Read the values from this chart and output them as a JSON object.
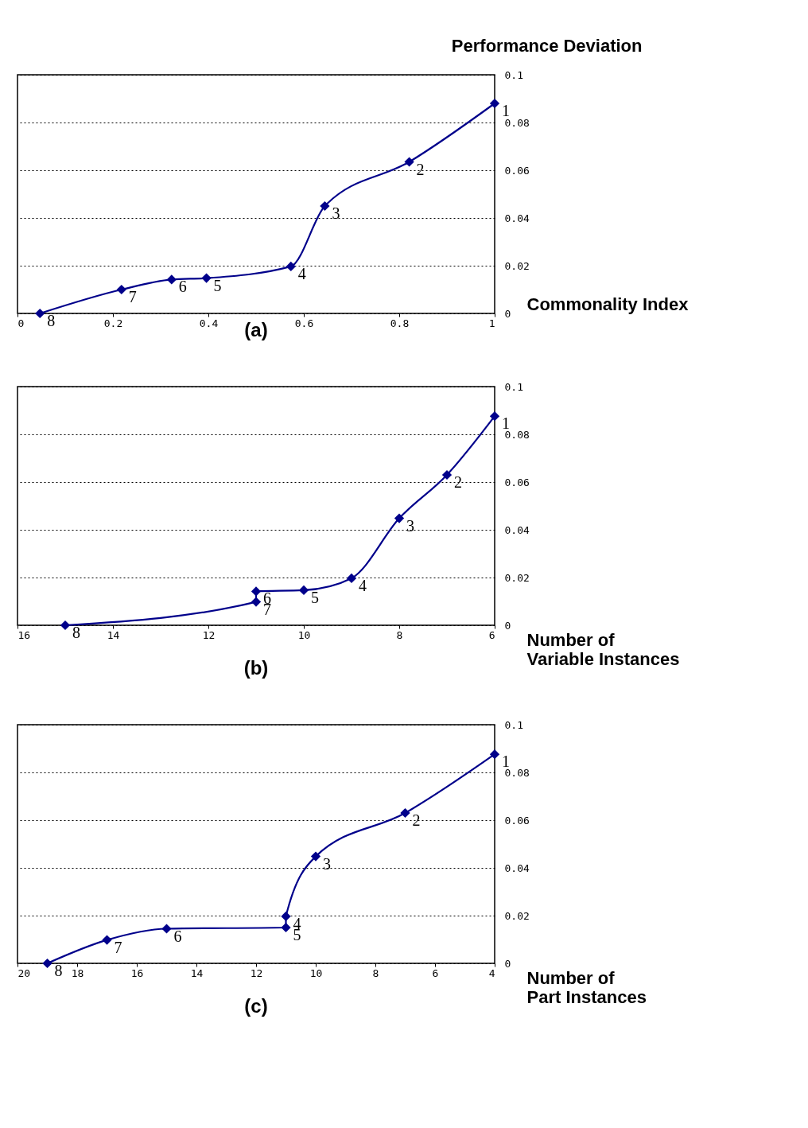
{
  "chart_data": [
    {
      "type": "line",
      "title": "(a)",
      "ylabel": "Performance Deviation",
      "xlabel": "Commonality Index",
      "x": [
        0.047,
        0.218,
        0.323,
        0.396,
        0.573,
        0.644,
        0.821,
        1.0
      ],
      "series": [
        {
          "color": "#00008b",
          "values": [
            0,
            0.01,
            0.0142,
            0.0148,
            0.0197,
            0.045,
            0.0635,
            0.088
          ]
        }
      ],
      "xlim": [
        0,
        1
      ],
      "xticks": [
        0,
        0.2,
        0.4,
        0.6,
        0.8,
        1
      ],
      "ylim": [
        0,
        0.1
      ],
      "yticks": [
        0,
        0.02,
        0.04,
        0.06,
        0.08,
        0.1
      ],
      "grid": "y",
      "marker": "diamond",
      "line_style": "solid",
      "annotations": [
        {
          "text": "8",
          "x": 0.047,
          "y": 0
        },
        {
          "text": "7",
          "x": 0.218,
          "y": 0.01
        },
        {
          "text": "6",
          "x": 0.323,
          "y": 0.0142
        },
        {
          "text": "5",
          "x": 0.396,
          "y": 0.0148
        },
        {
          "text": "4",
          "x": 0.573,
          "y": 0.0197
        },
        {
          "text": "3",
          "x": 0.644,
          "y": 0.045
        },
        {
          "text": "2",
          "x": 0.821,
          "y": 0.0635
        },
        {
          "text": "1",
          "x": 1.0,
          "y": 0.088
        }
      ]
    },
    {
      "type": "line",
      "title": "(b)",
      "xlabel": "Number of\nVariable Instances",
      "x": [
        15,
        11,
        11,
        10,
        9,
        8,
        7,
        6
      ],
      "series": [
        {
          "color": "#00008b",
          "values": [
            0,
            0.0098,
            0.0142,
            0.0147,
            0.0197,
            0.0448,
            0.063,
            0.0876
          ]
        }
      ],
      "xlim": [
        16,
        6
      ],
      "xticks": [
        16,
        14,
        12,
        10,
        8,
        6
      ],
      "ylim": [
        0,
        0.1
      ],
      "yticks": [
        0,
        0.02,
        0.04,
        0.06,
        0.08,
        0.1
      ],
      "grid": "y",
      "marker": "diamond",
      "line_style": "solid",
      "annotations": [
        {
          "text": "8",
          "x": 15,
          "y": 0
        },
        {
          "text": "7",
          "x": 11,
          "y": 0.0098
        },
        {
          "text": "6",
          "x": 11,
          "y": 0.0142
        },
        {
          "text": "5",
          "x": 10,
          "y": 0.0147
        },
        {
          "text": "4",
          "x": 9,
          "y": 0.0197
        },
        {
          "text": "3",
          "x": 8,
          "y": 0.0448
        },
        {
          "text": "2",
          "x": 7,
          "y": 0.063
        },
        {
          "text": "1",
          "x": 6,
          "y": 0.0876
        }
      ]
    },
    {
      "type": "line",
      "title": "(c)",
      "xlabel": "Number of\nPart Instances",
      "x": [
        19,
        17,
        15,
        11,
        11,
        10,
        7,
        4
      ],
      "series": [
        {
          "color": "#00008b",
          "values": [
            0,
            0.0098,
            0.0145,
            0.015,
            0.0197,
            0.0448,
            0.063,
            0.0876
          ]
        }
      ],
      "xlim": [
        20,
        4
      ],
      "xticks": [
        20,
        18,
        16,
        14,
        12,
        10,
        8,
        6,
        4
      ],
      "ylim": [
        0,
        0.1
      ],
      "yticks": [
        0,
        0.02,
        0.04,
        0.06,
        0.08,
        0.1
      ],
      "grid": "y",
      "marker": "diamond",
      "line_style": "solid",
      "annotations": [
        {
          "text": "8",
          "x": 19,
          "y": 0
        },
        {
          "text": "7",
          "x": 17,
          "y": 0.0098
        },
        {
          "text": "6",
          "x": 15,
          "y": 0.0145
        },
        {
          "text": "5",
          "x": 11,
          "y": 0.015
        },
        {
          "text": "4",
          "x": 11,
          "y": 0.0197
        },
        {
          "text": "3",
          "x": 10,
          "y": 0.0448
        },
        {
          "text": "2",
          "x": 7,
          "y": 0.063
        },
        {
          "text": "1",
          "x": 4,
          "y": 0.0876
        }
      ]
    }
  ]
}
